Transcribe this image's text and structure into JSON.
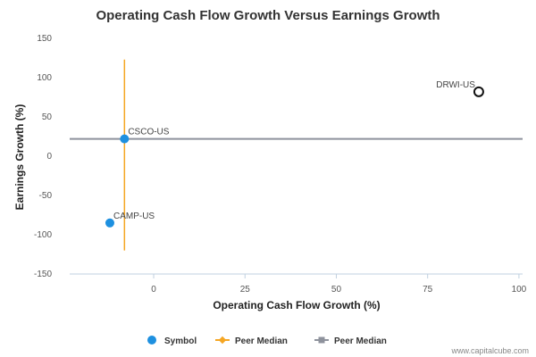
{
  "chart_data": {
    "type": "scatter",
    "title": "Operating Cash Flow Growth Versus Earnings Growth",
    "xlabel": "Operating Cash Flow Growth (%)",
    "ylabel": "Earnings Growth (%)",
    "xlim": [
      -23,
      101
    ],
    "ylim": [
      -150,
      150
    ],
    "xticks": [
      0,
      25,
      50,
      75,
      100
    ],
    "yticks": [
      150,
      100,
      50,
      0,
      -50,
      -100,
      -150
    ],
    "grid": false,
    "legend_position": "bottom",
    "points": [
      {
        "label": "CSCO-US",
        "x": -8,
        "y": 22,
        "style": "filled",
        "color": "#1e90e0"
      },
      {
        "label": "CAMP-US",
        "x": -12,
        "y": -85,
        "style": "filled",
        "color": "#1e90e0"
      },
      {
        "label": "DRWI-US",
        "x": 89,
        "y": 82,
        "style": "hollow",
        "color": "#111111"
      }
    ],
    "peer_median_x": -8,
    "peer_median_y": 22,
    "peer_median_x_range": [
      -120,
      123
    ],
    "colors": {
      "symbol": "#1e90e0",
      "peer_median_x": "#f5a623",
      "peer_median_y": "#8e929c",
      "axis": "#c0d0e0"
    },
    "legend": [
      {
        "label": "Symbol",
        "kind": "dot",
        "color": "#1e90e0"
      },
      {
        "label": "Peer Median",
        "kind": "line-diamond",
        "color": "#f5a623"
      },
      {
        "label": "Peer Median",
        "kind": "line-square",
        "color": "#8e929c"
      }
    ]
  },
  "watermark": "www.capitalcube.com"
}
